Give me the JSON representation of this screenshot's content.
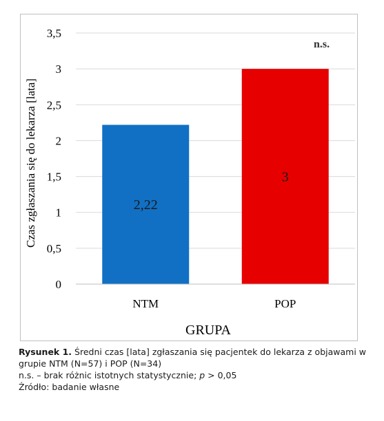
{
  "chart_data": {
    "type": "bar",
    "categories": [
      "NTM",
      "POP"
    ],
    "values": [
      2.22,
      3
    ],
    "data_labels": [
      "2,22",
      "3"
    ],
    "colors": [
      "#1170c4",
      "#e60000"
    ],
    "ylabel": "Czas zgłaszania się do lekarza [lata]",
    "xlabel": "GRUPA",
    "ylim": [
      0,
      3.5
    ],
    "yticks": [
      {
        "value": 0,
        "label": "0"
      },
      {
        "value": 0.5,
        "label": "0,5"
      },
      {
        "value": 1,
        "label": "1"
      },
      {
        "value": 1.5,
        "label": "1,5"
      },
      {
        "value": 2,
        "label": "2"
      },
      {
        "value": 2.5,
        "label": "2,5"
      },
      {
        "value": 3,
        "label": "3"
      },
      {
        "value": 3.5,
        "label": "3,5"
      }
    ],
    "grid": true,
    "annotation": "n.s."
  },
  "caption": {
    "label": "Rysunek 1.",
    "text": " Średni czas [lata] zgłaszania się pacjentek do lekarza z objawami w grupie NTM (N=57) i POP (N=34)",
    "ns_prefix": "n.s. – brak różnic istotnych statystycznie; ",
    "p_symbol": "p",
    "p_suffix": " > 0,05",
    "source": "Źródło: badanie własne"
  }
}
